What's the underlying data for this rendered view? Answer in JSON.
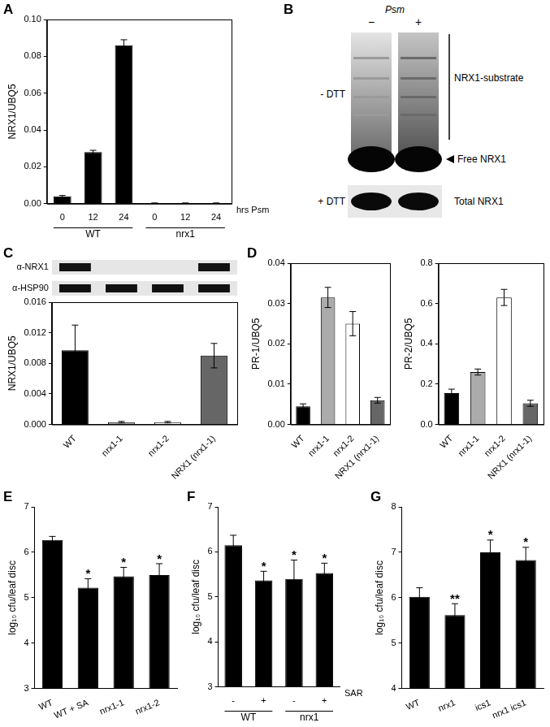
{
  "chart_data": [
    {
      "type": "bar",
      "title": "A",
      "categories": [
        "0",
        "12",
        "24",
        "0",
        "12",
        "24"
      ],
      "groups": [
        {
          "name": "WT",
          "size": 3
        },
        {
          "name": "nrx1",
          "size": 3
        }
      ],
      "xlabel": "hrs Psm",
      "ylabel": "NRX1/UBQ5",
      "values": [
        0.004,
        0.028,
        0.086,
        0.0003,
        0.0003,
        0.0003
      ],
      "errors": [
        0.0005,
        0.001,
        0.003,
        0.0001,
        0.0001,
        0.0001
      ],
      "color": "#000000",
      "ylim": [
        0,
        0.1
      ],
      "yticks": [
        {
          "value": 0,
          "label": "0.00"
        },
        {
          "value": 0.02,
          "label": "0.02"
        },
        {
          "value": 0.04,
          "label": "0.04"
        },
        {
          "value": 0.06,
          "label": "0.06"
        },
        {
          "value": 0.08,
          "label": "0.08"
        },
        {
          "value": 0.1,
          "label": "0.10"
        }
      ],
      "grid": false
    },
    {
      "type": "bar",
      "title": "C",
      "blot": {
        "rows": [
          {
            "label": "α-NRX1",
            "bands": [
              true,
              false,
              false,
              true
            ]
          },
          {
            "label": "α-HSP90",
            "bands": [
              true,
              true,
              true,
              true
            ]
          }
        ]
      },
      "categories": [
        "WT",
        "nrx1-1",
        "nrx1-2",
        "NRX1 (nrx1-1)"
      ],
      "ylabel": "NRX1/UBQ5",
      "values": [
        0.0097,
        0.0003,
        0.0003,
        0.009
      ],
      "errors": [
        0.0033,
        0.0001,
        0.0001,
        0.0016
      ],
      "colors": [
        "#000000",
        "#ababab",
        "#ffffff",
        "#666666"
      ],
      "ylim": [
        0,
        0.016
      ],
      "yticks": [
        {
          "value": 0,
          "label": "0.000"
        },
        {
          "value": 0.004,
          "label": "0.004"
        },
        {
          "value": 0.008,
          "label": "0.008"
        },
        {
          "value": 0.012,
          "label": "0.012"
        },
        {
          "value": 0.016,
          "label": "0.016"
        }
      ],
      "grid": false
    },
    {
      "type": "bar",
      "title": "D",
      "categories": [
        "WT",
        "nrx1-1",
        "nrx1-2",
        "NRX1 (nrx1-1)"
      ],
      "ylabel": "PR-1/UBQ5",
      "values": [
        0.0045,
        0.0315,
        0.025,
        0.006
      ],
      "errors": [
        0.0006,
        0.0025,
        0.003,
        0.0007
      ],
      "colors": [
        "#000000",
        "#ababab",
        "#ffffff",
        "#666666"
      ],
      "ylim": [
        0,
        0.04
      ],
      "yticks": [
        {
          "value": 0,
          "label": "0.00"
        },
        {
          "value": 0.01,
          "label": "0.01"
        },
        {
          "value": 0.02,
          "label": "0.02"
        },
        {
          "value": 0.03,
          "label": "0.03"
        },
        {
          "value": 0.04,
          "label": "0.04"
        }
      ],
      "grid": false
    },
    {
      "type": "bar",
      "categories": [
        "WT",
        "nrx1-1",
        "nrx1-2",
        "NRX1 (nrx1-1)"
      ],
      "ylabel": "PR-2/UBQ5",
      "values": [
        0.155,
        0.26,
        0.63,
        0.105
      ],
      "errors": [
        0.02,
        0.015,
        0.04,
        0.015
      ],
      "colors": [
        "#000000",
        "#ababab",
        "#ffffff",
        "#666666"
      ],
      "ylim": [
        0,
        0.8
      ],
      "yticks": [
        {
          "value": 0,
          "label": "0.0"
        },
        {
          "value": 0.2,
          "label": "0.2"
        },
        {
          "value": 0.4,
          "label": "0.4"
        },
        {
          "value": 0.6,
          "label": "0.6"
        },
        {
          "value": 0.8,
          "label": "0.8"
        }
      ],
      "grid": false
    },
    {
      "type": "bar",
      "title": "E",
      "categories": [
        "WT",
        "WT + SA",
        "nrx1-1",
        "nrx1-2"
      ],
      "ylabel": "log₁₀ cfu/leaf disc",
      "values": [
        6.27,
        5.22,
        5.47,
        5.5
      ],
      "errors": [
        0.08,
        0.2,
        0.2,
        0.25
      ],
      "annotations": [
        null,
        "*",
        "*",
        "*"
      ],
      "color": "#000000",
      "ylim": [
        3,
        7
      ],
      "yticks": [
        3,
        4,
        5,
        6,
        7
      ],
      "grid": false
    },
    {
      "type": "bar",
      "title": "F",
      "categories": [
        "-",
        "+",
        "-",
        "+"
      ],
      "groups": [
        {
          "name": "WT",
          "size": 2
        },
        {
          "name": "nrx1",
          "size": 2
        }
      ],
      "xlabel": "SAR",
      "ylabel": "log₁₀ cfu/leaf disc",
      "values": [
        6.15,
        5.37,
        5.4,
        5.53
      ],
      "errors": [
        0.22,
        0.2,
        0.42,
        0.22
      ],
      "annotations": [
        null,
        "*",
        "*",
        "*"
      ],
      "color": "#000000",
      "ylim": [
        3,
        7
      ],
      "yticks": [
        3,
        4,
        5,
        6,
        7
      ],
      "grid": false
    },
    {
      "type": "bar",
      "title": "G",
      "categories": [
        "WT",
        "nrx1",
        "ics1",
        "nrx1 ics1"
      ],
      "ylabel": "log₁₀ cfu/leaf disc",
      "values": [
        6.02,
        5.62,
        7.0,
        6.83
      ],
      "errors": [
        0.2,
        0.25,
        0.27,
        0.28
      ],
      "annotations": [
        null,
        "**",
        "*",
        "*"
      ],
      "color": "#000000",
      "ylim": [
        4,
        8
      ],
      "yticks": [
        4,
        5,
        6,
        7,
        8
      ],
      "grid": false
    }
  ],
  "gel": {
    "title": "B",
    "column_header": "Psm",
    "lanes": [
      "−",
      "+"
    ],
    "top_blot": {
      "label": "- DTT",
      "bracket_label": "NRX1-substrate",
      "arrow_label": "Free NRX1"
    },
    "bottom_blot": {
      "label": "+ DTT",
      "side_label": "Total NRX1"
    }
  }
}
